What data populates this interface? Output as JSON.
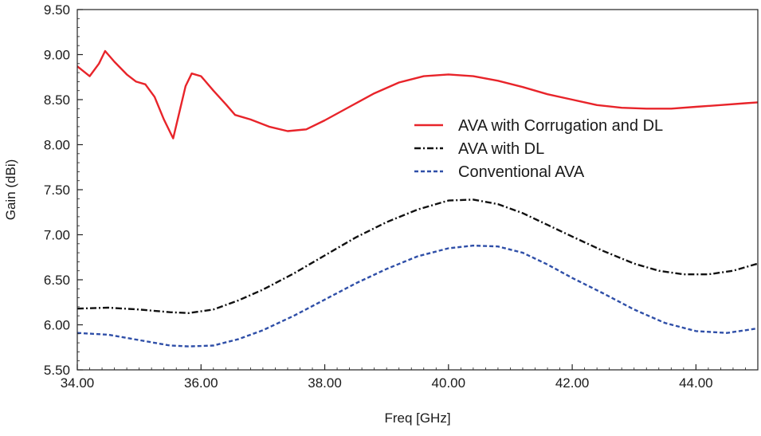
{
  "chart_data": {
    "type": "line",
    "title": "",
    "xlabel": "Freq [GHz]",
    "ylabel": "Gain (dBi)",
    "xlim": [
      34.0,
      45.0
    ],
    "ylim": [
      5.5,
      9.5
    ],
    "xticks": [
      34.0,
      36.0,
      38.0,
      40.0,
      42.0,
      44.0
    ],
    "xtick_labels": [
      "34.00",
      "36.00",
      "38.00",
      "40.00",
      "42.00",
      "44.00"
    ],
    "yticks": [
      5.5,
      6.0,
      6.5,
      7.0,
      7.5,
      8.0,
      8.5,
      9.0,
      9.5
    ],
    "ytick_labels": [
      "5.50",
      "6.00",
      "6.50",
      "7.00",
      "7.50",
      "8.00",
      "8.50",
      "9.00",
      "9.50"
    ],
    "grid": false,
    "legend_position": "center-right",
    "series": [
      {
        "name": "AVA with Corrugation and DL",
        "color": "#e8242a",
        "style": "solid",
        "x": [
          34.0,
          34.2,
          34.35,
          34.45,
          34.6,
          34.8,
          34.95,
          35.1,
          35.25,
          35.4,
          35.55,
          35.65,
          35.75,
          35.85,
          36.0,
          36.2,
          36.4,
          36.55,
          36.8,
          37.1,
          37.4,
          37.7,
          38.0,
          38.4,
          38.8,
          39.2,
          39.6,
          40.0,
          40.4,
          40.8,
          41.2,
          41.6,
          42.0,
          42.4,
          42.8,
          43.2,
          43.6,
          44.0,
          44.4,
          44.8,
          45.0
        ],
        "y": [
          8.87,
          8.76,
          8.9,
          9.04,
          8.92,
          8.78,
          8.7,
          8.67,
          8.53,
          8.28,
          8.07,
          8.36,
          8.65,
          8.79,
          8.76,
          8.6,
          8.45,
          8.33,
          8.28,
          8.2,
          8.15,
          8.17,
          8.27,
          8.42,
          8.57,
          8.69,
          8.76,
          8.78,
          8.76,
          8.71,
          8.64,
          8.56,
          8.5,
          8.44,
          8.41,
          8.4,
          8.4,
          8.42,
          8.44,
          8.46,
          8.47
        ]
      },
      {
        "name": "AVA with DL",
        "color": "#111111",
        "style": "dash-dot",
        "x": [
          34.0,
          34.5,
          35.0,
          35.5,
          35.8,
          36.2,
          36.6,
          37.0,
          37.5,
          38.0,
          38.5,
          39.0,
          39.5,
          40.0,
          40.4,
          40.8,
          41.2,
          41.6,
          42.0,
          42.5,
          43.0,
          43.4,
          43.8,
          44.2,
          44.6,
          45.0
        ],
        "y": [
          6.18,
          6.19,
          6.17,
          6.14,
          6.13,
          6.17,
          6.27,
          6.39,
          6.57,
          6.77,
          6.97,
          7.14,
          7.28,
          7.38,
          7.39,
          7.34,
          7.24,
          7.11,
          6.98,
          6.82,
          6.68,
          6.6,
          6.56,
          6.56,
          6.6,
          6.68
        ]
      },
      {
        "name": "Conventional AVA",
        "color": "#2f4fa8",
        "style": "dashed",
        "x": [
          34.0,
          34.5,
          35.0,
          35.5,
          35.8,
          36.2,
          36.6,
          37.0,
          37.5,
          38.0,
          38.5,
          39.0,
          39.5,
          40.0,
          40.4,
          40.8,
          41.2,
          41.6,
          42.0,
          42.5,
          43.0,
          43.5,
          44.0,
          44.5,
          45.0
        ],
        "y": [
          5.91,
          5.89,
          5.83,
          5.77,
          5.76,
          5.77,
          5.84,
          5.94,
          6.1,
          6.28,
          6.46,
          6.62,
          6.76,
          6.85,
          6.88,
          6.87,
          6.8,
          6.67,
          6.52,
          6.35,
          6.17,
          6.02,
          5.93,
          5.91,
          5.96
        ]
      }
    ]
  }
}
